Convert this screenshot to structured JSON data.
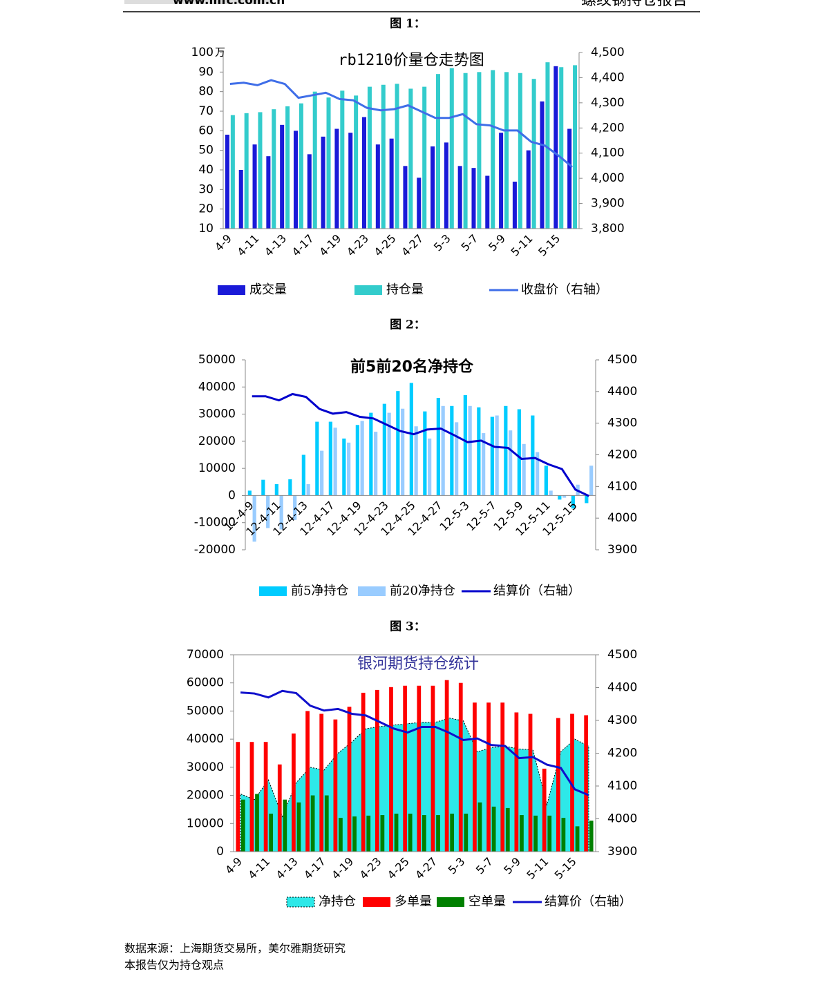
{
  "header": {
    "site": "www.mfc.com.cn",
    "title": "螺纹钢持仓报告"
  },
  "captions": [
    "图 1：",
    "图 2：",
    "图 3："
  ],
  "footer": [
    "数据来源：上海期货交易所，美尔雅期货研究",
    "本报告仅为持仓观点"
  ],
  "chart_data": [
    {
      "type": "combo",
      "title": "rb1210价量仓走势图",
      "y_unit": "万",
      "categories": [
        "4-9",
        null,
        "4-11",
        null,
        "4-13",
        null,
        "4-17",
        null,
        "4-19",
        null,
        "4-23",
        null,
        "4-25",
        null,
        "4-27",
        null,
        "5-3",
        null,
        "5-7",
        null,
        "5-9",
        null,
        "5-11",
        null,
        "5-15",
        null
      ],
      "series": [
        {
          "name": "成交量",
          "type": "bar",
          "color": "#1a1ad8",
          "values": [
            58,
            40,
            53,
            47,
            63,
            60,
            48,
            57,
            61,
            59,
            67,
            53,
            56,
            42,
            36,
            52,
            54,
            42,
            41,
            37,
            59,
            34,
            50,
            75,
            93,
            61
          ]
        },
        {
          "name": "持仓量",
          "type": "bar",
          "color": "#33cccc",
          "values": [
            68,
            69,
            69.5,
            71,
            72.5,
            74,
            80,
            77,
            80.5,
            78,
            82.5,
            83.5,
            84,
            81.5,
            82.5,
            89,
            92,
            89.5,
            90,
            91,
            90,
            89.5,
            86.5,
            95,
            92.5,
            93.5
          ]
        },
        {
          "name": "收盘价（右轴）",
          "type": "line",
          "axis": "y2",
          "color": "#3f6ee8",
          "values": [
            4375,
            4380,
            4370,
            4390,
            4375,
            4320,
            4330,
            4340,
            4315,
            4310,
            4280,
            4270,
            4275,
            4290,
            4265,
            4240,
            4240,
            4255,
            4215,
            4210,
            4190,
            4190,
            4145,
            4130,
            4090,
            4045
          ]
        }
      ],
      "ylim": [
        10,
        100
      ],
      "yticks": [
        10,
        20,
        30,
        40,
        50,
        60,
        70,
        80,
        90,
        100
      ],
      "y2lim": [
        3800,
        4500
      ],
      "y2ticks": [
        {
          "value": 3800,
          "label": "3,800"
        },
        {
          "value": 3900,
          "label": "3,900"
        },
        {
          "value": 4000,
          "label": "4,000"
        },
        {
          "value": 4100,
          "label": "4,100"
        },
        {
          "value": 4200,
          "label": "4,200"
        },
        {
          "value": 4300,
          "label": "4,300"
        },
        {
          "value": 4400,
          "label": "4,400"
        },
        {
          "value": 4500,
          "label": "4,500"
        }
      ]
    },
    {
      "type": "combo",
      "title": "前5前20名净持仓",
      "categories": [
        "12-4-9",
        null,
        "12-4-11",
        null,
        "12-4-13",
        null,
        "12-4-17",
        null,
        "12-4-19",
        null,
        "12-4-23",
        null,
        "12-4-25",
        null,
        "12-4-27",
        null,
        "12-5-3",
        null,
        "12-5-7",
        null,
        "12-5-9",
        null,
        "12-5-11",
        null,
        "12-5-15",
        null
      ],
      "series": [
        {
          "name": "前5净持仓",
          "type": "bar",
          "color": "#00ccff",
          "values": [
            1800,
            5800,
            4200,
            6000,
            15000,
            27200,
            27200,
            21000,
            26000,
            30500,
            33800,
            38500,
            41500,
            31000,
            36000,
            33000,
            37000,
            32500,
            29000,
            33000,
            31800,
            29500,
            11000,
            -1500,
            -4800,
            -2800
          ]
        },
        {
          "name": "前20净持仓",
          "type": "bar",
          "color": "#99ccff",
          "values": [
            -17000,
            -12000,
            -12500,
            -9000,
            4200,
            16500,
            25000,
            19500,
            27500,
            23500,
            30500,
            32000,
            25500,
            21000,
            33000,
            27000,
            33000,
            23000,
            29500,
            24000,
            19000,
            16000,
            1800,
            -800,
            4000,
            11000
          ]
        },
        {
          "name": "结算价（右轴）",
          "type": "line",
          "axis": "y2",
          "color": "#0000cc",
          "values": [
            4385,
            4385,
            4372,
            4392,
            4383,
            4345,
            4330,
            4335,
            4320,
            4315,
            4295,
            4275,
            4265,
            4280,
            4283,
            4262,
            4240,
            4245,
            4225,
            4222,
            4187,
            4190,
            4170,
            4155,
            4090,
            4070
          ]
        }
      ],
      "ylim": [
        -20000,
        50000
      ],
      "yticks": [
        -20000,
        -10000,
        0,
        10000,
        20000,
        30000,
        40000,
        50000
      ],
      "y2lim": [
        3900,
        4500
      ],
      "y2ticks": [
        3900,
        4000,
        4100,
        4200,
        4300,
        4400,
        4500
      ]
    },
    {
      "type": "combo",
      "title": "银河期货持仓统计",
      "categories": [
        "4-9",
        null,
        "4-11",
        null,
        "4-13",
        null,
        "4-17",
        null,
        "4-19",
        null,
        "4-23",
        null,
        "4-25",
        null,
        "4-27",
        null,
        "5-3",
        null,
        "5-7",
        null,
        "5-9",
        null,
        "5-11",
        null,
        "5-15",
        null
      ],
      "series": [
        {
          "name": "净持仓",
          "type": "area",
          "color": "#2ee8e8",
          "values": [
            20500,
            18500,
            25500,
            12500,
            24500,
            30000,
            29000,
            35000,
            39000,
            43700,
            44500,
            45000,
            45500,
            46000,
            46000,
            47500,
            46500,
            35500,
            37000,
            37500,
            36500,
            36200,
            16700,
            35500,
            40000,
            37500
          ]
        },
        {
          "name": "多单量",
          "type": "bar",
          "color": "#ff0000",
          "values": [
            39000,
            39000,
            39000,
            31000,
            42000,
            50000,
            49000,
            47000,
            51500,
            56500,
            57500,
            58500,
            59000,
            59000,
            59000,
            61000,
            60000,
            53000,
            53000,
            53000,
            49500,
            49000,
            29500,
            47500,
            49000,
            48500
          ]
        },
        {
          "name": "空单量",
          "type": "bar",
          "color": "#008000",
          "values": [
            18500,
            20500,
            13500,
            18500,
            17500,
            20000,
            20000,
            12000,
            12500,
            12800,
            13000,
            13500,
            13500,
            13000,
            13000,
            13500,
            13500,
            17500,
            16000,
            15500,
            13000,
            12800,
            12800,
            12000,
            9000,
            11000
          ]
        },
        {
          "name": "结算价（右轴）",
          "type": "line",
          "axis": "y2",
          "color": "#1010cc",
          "values": [
            4385,
            4382,
            4370,
            4390,
            4383,
            4345,
            4330,
            4335,
            4320,
            4315,
            4295,
            4275,
            4263,
            4280,
            4280,
            4262,
            4240,
            4245,
            4225,
            4222,
            4185,
            4188,
            4165,
            4155,
            4090,
            4072
          ]
        }
      ],
      "ylim": [
        0,
        70000
      ],
      "yticks": [
        0,
        10000,
        20000,
        30000,
        40000,
        50000,
        60000,
        70000
      ],
      "y2lim": [
        3900,
        4500
      ],
      "y2ticks": [
        3900,
        4000,
        4100,
        4200,
        4300,
        4400,
        4500
      ]
    }
  ]
}
